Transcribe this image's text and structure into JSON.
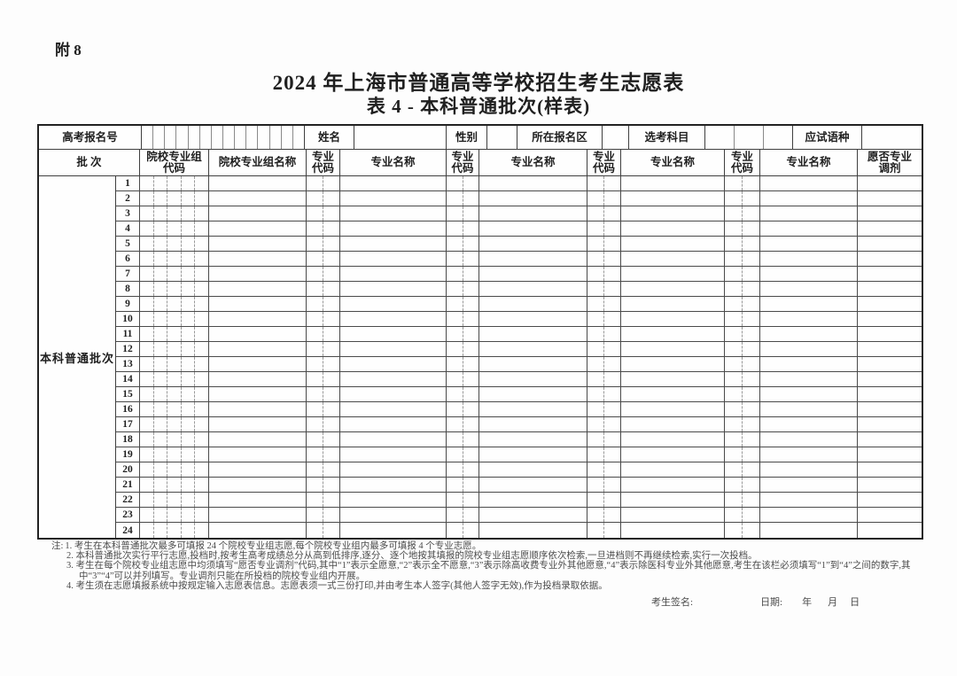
{
  "page": {
    "attachment_label": "附 8",
    "title_line1": "2024 年上海市普通高等学校招生考生志愿表",
    "title_line2": "表 4 - 本科普通批次(样表)"
  },
  "info_row": {
    "exam_id_label": "高考报名号",
    "exam_id_box_count": 14,
    "name_label": "姓名",
    "gender_label": "性别",
    "district_label": "所在报名区",
    "subjects_label": "选考科目",
    "subject_box_count": 3,
    "language_label": "应试语种"
  },
  "header_row": {
    "batch_label": "批  次",
    "group_code_line1": "院校专业组",
    "group_code_line2": "代码",
    "group_name_label": "院校专业组名称",
    "major_code_line1": "专业",
    "major_code_line2": "代码",
    "major_name_label": "专业名称",
    "adjust_line1": "愿否专业",
    "adjust_line2": "调剂"
  },
  "body": {
    "batch_name": "本科普通批次",
    "row_numbers": [
      1,
      2,
      3,
      4,
      5,
      6,
      7,
      8,
      9,
      10,
      11,
      12,
      13,
      14,
      15,
      16,
      17,
      18,
      19,
      20,
      21,
      22,
      23,
      24
    ],
    "group_code_subcells": 5,
    "major_code_subcells": 2
  },
  "notes": {
    "prefix": "注:",
    "items": [
      "1. 考生在本科普通批次最多可填报 24 个院校专业组志愿,每个院校专业组内最多可填报 4 个专业志愿。",
      "2. 本科普通批次实行平行志愿,投档时,按考生高考成绩总分从高到低排序,逐分、逐个地按其填报的院校专业组志愿顺序依次检索,一旦进档则不再继续检索,实行一次投档。",
      "3. 考生在每个院校专业组志愿中均须填写“愿否专业调剂”代码,其中“1”表示全愿意,“2”表示全不愿意,“3”表示除高收费专业外其他愿意,“4”表示除医科专业外其他愿意,考生在该栏必须填写“1”到“4”之间的数字,其中“3”“4”可以并列填写。专业调剂只能在所投档的院校专业组内开展。",
      "4. 考生须在志愿填报系统中按规定输入志愿表信息。志愿表须一式三份打印,并由考生本人签字(其他人签字无效),作为投档录取依据。"
    ]
  },
  "signature": {
    "sign_label": "考生签名:",
    "date_label": "日期:",
    "year_label": "年",
    "month_label": "月",
    "day_label": "日"
  }
}
